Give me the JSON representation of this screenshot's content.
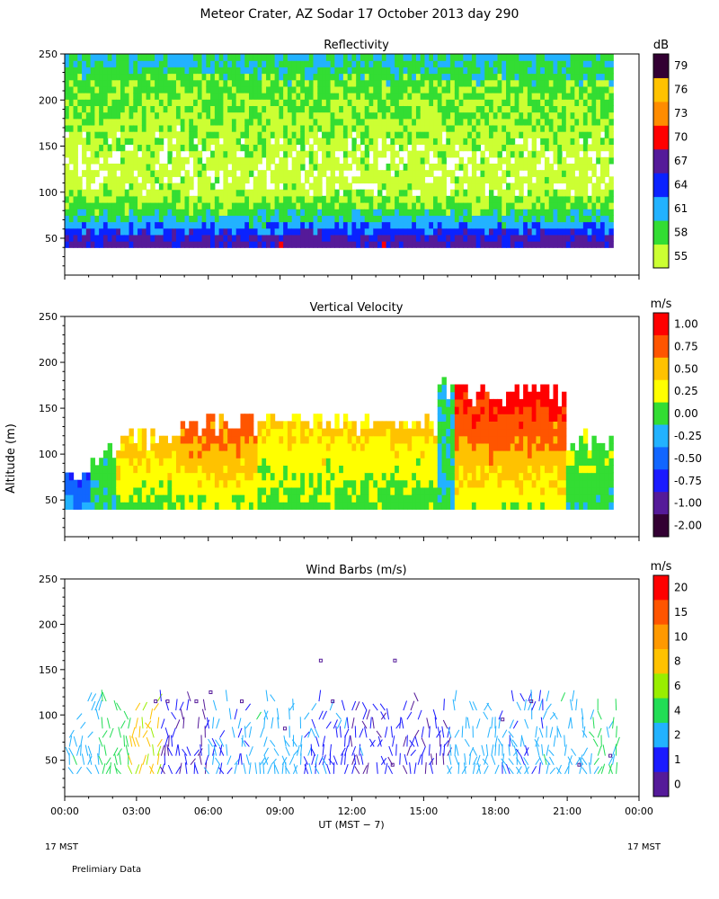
{
  "figure": {
    "title": "Meteor Crater, AZ  Sodar  17 October 2013  day 290",
    "ylabel": "Altitude (m)",
    "xlabel": "UT  (MST − 7)",
    "x_ticks": [
      "00:00",
      "03:00",
      "06:00",
      "09:00",
      "12:00",
      "15:00",
      "18:00",
      "21:00",
      "00:00"
    ],
    "y_ticks": [
      "50",
      "100",
      "150",
      "200",
      "250"
    ],
    "left_bottom_label": "17 MST",
    "right_bottom_label": "17 MST",
    "footer_note": "Prelimiary Data"
  },
  "chart_data": [
    {
      "type": "heatmap",
      "title": "Reflectivity",
      "colorbar_unit": "dB",
      "x_range_hours": [
        0,
        24
      ],
      "ylim": [
        10,
        250
      ],
      "data_ylim": [
        40,
        250
      ],
      "colorbar_levels": [
        "55",
        "58",
        "61",
        "64",
        "67",
        "70",
        "73",
        "76",
        "79"
      ],
      "colorbar_colors": [
        "#ccff33",
        "#33dd33",
        "#22b2ff",
        "#0a22ff",
        "#551a99",
        "#ff0000",
        "#ff8c00",
        "#ffc200",
        "#330033"
      ],
      "profile_dB": [
        {
          "altitude_m": 45,
          "value": 68
        },
        {
          "altitude_m": 55,
          "value": 65
        },
        {
          "altitude_m": 65,
          "value": 62
        },
        {
          "altitude_m": 80,
          "value": 59
        },
        {
          "altitude_m": 100,
          "value": 56
        },
        {
          "altitude_m": 130,
          "value": 56
        },
        {
          "altitude_m": 160,
          "value": 57
        },
        {
          "altitude_m": 190,
          "value": 58
        },
        {
          "altitude_m": 215,
          "value": 59
        },
        {
          "altitude_m": 240,
          "value": 61
        }
      ]
    },
    {
      "type": "heatmap",
      "title": "Vertical Velocity",
      "colorbar_unit": "m/s",
      "x_range_hours": [
        0,
        24
      ],
      "ylim": [
        10,
        250
      ],
      "data_ylim": [
        40,
        250
      ],
      "colorbar_levels": [
        "1.00",
        "0.75",
        "0.50",
        "0.25",
        "0.00",
        "-0.25",
        "-0.50",
        "-0.75",
        "-1.00",
        "-2.00"
      ],
      "colorbar_colors": [
        "#ff0000",
        "#ff5500",
        "#ffc200",
        "#ffff00",
        "#33dd33",
        "#22b2ff",
        "#1166ff",
        "#1a1aff",
        "#551a99",
        "#330033"
      ],
      "section_hours": [
        {
          "from": 0,
          "to": 0.9,
          "value": -0.4,
          "top_m": 70
        },
        {
          "from": 0.9,
          "to": 2.0,
          "value": 0.1,
          "top_m": 95
        },
        {
          "from": 2.0,
          "to": 4.5,
          "value": 0.5,
          "top_m": 115
        },
        {
          "from": 4.5,
          "to": 8.0,
          "value": 0.7,
          "top_m": 130
        },
        {
          "from": 8.0,
          "to": 15.5,
          "value": 0.45,
          "top_m": 130
        },
        {
          "from": 15.5,
          "to": 16.2,
          "value": 0.0,
          "top_m": 170
        },
        {
          "from": 16.2,
          "to": 20.8,
          "value": 0.9,
          "top_m": 160
        },
        {
          "from": 20.8,
          "to": 23.0,
          "value": 0.2,
          "top_m": 110
        }
      ]
    },
    {
      "type": "scatter",
      "title": "Wind Barbs (m/s)",
      "colorbar_unit": "m/s",
      "x_range_hours": [
        0,
        24
      ],
      "ylim": [
        10,
        250
      ],
      "colorbar_levels": [
        "20",
        "15",
        "10",
        "8",
        "6",
        "4",
        "2",
        "1",
        "0"
      ],
      "colorbar_colors": [
        "#ff0000",
        "#ff5500",
        "#ff9900",
        "#ffc200",
        "#99ee00",
        "#22dd55",
        "#22b2ff",
        "#1a1aff",
        "#551a99"
      ],
      "altitudes_m": [
        35,
        45,
        55,
        65,
        75,
        85,
        95,
        105,
        115
      ],
      "speed_by_hour": [
        {
          "hour": 0.5,
          "speed": 3
        },
        {
          "hour": 1.5,
          "speed": 5
        },
        {
          "hour": 2.8,
          "speed": 8
        },
        {
          "hour": 4.0,
          "speed": 1
        },
        {
          "hour": 6.0,
          "speed": 2
        },
        {
          "hour": 8.0,
          "speed": 3
        },
        {
          "hour": 10.0,
          "speed": 1.5
        },
        {
          "hour": 12.0,
          "speed": 1
        },
        {
          "hour": 14.0,
          "speed": 1
        },
        {
          "hour": 16.0,
          "speed": 2.5
        },
        {
          "hour": 18.0,
          "speed": 2
        },
        {
          "hour": 20.0,
          "speed": 3
        },
        {
          "hour": 22.0,
          "speed": 4
        }
      ],
      "calm_markers": [
        {
          "hour": 3.8,
          "altitude_m": 115
        },
        {
          "hour": 4.3,
          "altitude_m": 115
        },
        {
          "hour": 5.5,
          "altitude_m": 115
        },
        {
          "hour": 6.1,
          "altitude_m": 125
        },
        {
          "hour": 7.4,
          "altitude_m": 115
        },
        {
          "hour": 10.7,
          "altitude_m": 160
        },
        {
          "hour": 13.8,
          "altitude_m": 160
        },
        {
          "hour": 11.2,
          "altitude_m": 115
        },
        {
          "hour": 9.2,
          "altitude_m": 85
        },
        {
          "hour": 13.7,
          "altitude_m": 45
        },
        {
          "hour": 19.5,
          "altitude_m": 115
        },
        {
          "hour": 18.3,
          "altitude_m": 95
        },
        {
          "hour": 21.5,
          "altitude_m": 45
        },
        {
          "hour": 22.8,
          "altitude_m": 55
        }
      ]
    }
  ]
}
